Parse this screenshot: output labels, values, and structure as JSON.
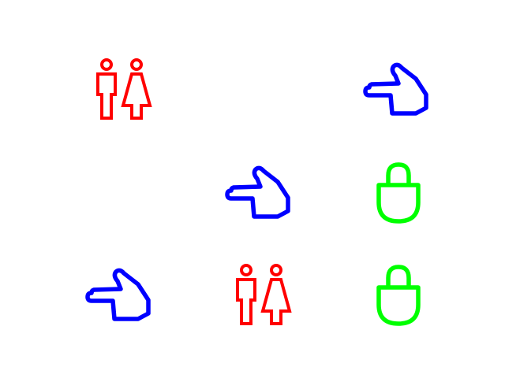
{
  "colors": {
    "restroom": "#ff0000",
    "hand": "#0000ff",
    "lock": "#00ff00"
  },
  "grid": [
    [
      "restroom-icon",
      null,
      "pointing-hand-icon"
    ],
    [
      null,
      "pointing-hand-icon",
      "lock-icon"
    ],
    [
      "pointing-hand-icon",
      "restroom-icon",
      "lock-icon"
    ]
  ]
}
